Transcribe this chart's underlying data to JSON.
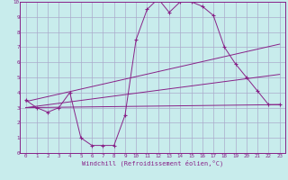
{
  "bg_color": "#c8ecec",
  "grid_color": "#aaaacc",
  "line_color": "#882288",
  "xlabel": "Windchill (Refroidissement éolien,°C)",
  "xlim": [
    -0.5,
    23.5
  ],
  "ylim": [
    0,
    10
  ],
  "xticks": [
    0,
    1,
    2,
    3,
    4,
    5,
    6,
    7,
    8,
    9,
    10,
    11,
    12,
    13,
    14,
    15,
    16,
    17,
    18,
    19,
    20,
    21,
    22,
    23
  ],
  "yticks": [
    0,
    1,
    2,
    3,
    4,
    5,
    6,
    7,
    8,
    9,
    10
  ],
  "line1_x": [
    0,
    1,
    2,
    3,
    4,
    5,
    6,
    7,
    8,
    9,
    10,
    11,
    12,
    13,
    14,
    15,
    16,
    17,
    18,
    19,
    20,
    21,
    22,
    23
  ],
  "line1_y": [
    3.5,
    3.0,
    2.7,
    3.0,
    4.0,
    1.0,
    0.5,
    0.5,
    0.5,
    2.5,
    7.5,
    9.5,
    10.2,
    9.3,
    10.0,
    10.0,
    9.7,
    9.1,
    7.0,
    5.9,
    5.0,
    4.1,
    3.2,
    3.2
  ],
  "line2_x": [
    0,
    23
  ],
  "line2_y": [
    3.4,
    7.2
  ],
  "line3_x": [
    0,
    23
  ],
  "line3_y": [
    3.0,
    5.2
  ],
  "line4_x": [
    0,
    23
  ],
  "line4_y": [
    3.0,
    3.2
  ],
  "marker_size": 3,
  "linewidth": 0.7,
  "tick_fontsize": 4.2,
  "xlabel_fontsize": 5.0
}
